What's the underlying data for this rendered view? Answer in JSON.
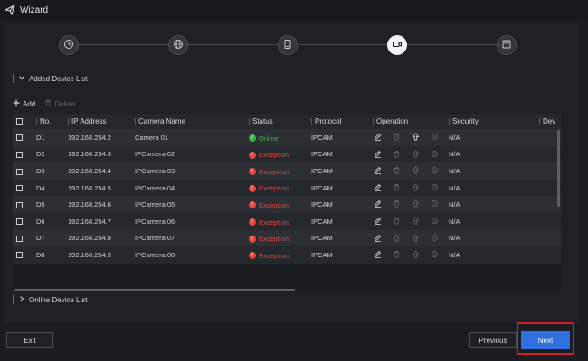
{
  "window": {
    "title": "Wizard"
  },
  "stepper": {
    "steps": [
      {
        "icon": "clock-icon",
        "active": false
      },
      {
        "icon": "globe-icon",
        "active": false
      },
      {
        "icon": "storage-icon",
        "active": false
      },
      {
        "icon": "camera-icon",
        "active": true
      },
      {
        "icon": "save-icon",
        "active": false
      }
    ]
  },
  "added_section": {
    "label": "Added Device List",
    "expanded": true
  },
  "toolbar": {
    "add_label": "Add",
    "delete_label": "Delete"
  },
  "table": {
    "columns": {
      "no": "No.",
      "ip": "IP Address",
      "name": "Camera Name",
      "status": "Status",
      "protocol": "Protocol",
      "operation": "Operation",
      "security": "Security",
      "device": "Dev"
    },
    "rows": [
      {
        "no": "D1",
        "ip": "192.168.254.2",
        "name": "Camera 01",
        "status": "Online",
        "protocol": "IPCAM",
        "security": "N/A"
      },
      {
        "no": "D2",
        "ip": "192.168.254.3",
        "name": "IPCamera 02",
        "status": "Exception",
        "protocol": "IPCAM",
        "security": "N/A"
      },
      {
        "no": "D3",
        "ip": "192.168.254.4",
        "name": "IPCamera 03",
        "status": "Exception",
        "protocol": "IPCAM",
        "security": "N/A"
      },
      {
        "no": "D4",
        "ip": "192.168.254.5",
        "name": "IPCamera 04",
        "status": "Exception",
        "protocol": "IPCAM",
        "security": "N/A"
      },
      {
        "no": "D5",
        "ip": "192.168.254.6",
        "name": "IPCamera 05",
        "status": "Exception",
        "protocol": "IPCAM",
        "security": "N/A"
      },
      {
        "no": "D6",
        "ip": "192.168.254.7",
        "name": "IPCamera 06",
        "status": "Exception",
        "protocol": "IPCAM",
        "security": "N/A"
      },
      {
        "no": "D7",
        "ip": "192.168.254.8",
        "name": "IPCamera 07",
        "status": "Exception",
        "protocol": "IPCAM",
        "security": "N/A"
      },
      {
        "no": "D8",
        "ip": "192.168.254.9",
        "name": "IPCamera 08",
        "status": "Exception",
        "protocol": "IPCAM",
        "security": "N/A"
      }
    ]
  },
  "online_section": {
    "label": "Online Device List",
    "expanded": false
  },
  "buttons": {
    "exit": "Exit",
    "previous": "Previous",
    "next": "Next"
  },
  "colors": {
    "accent": "#2f6fe0",
    "online": "#3bb54a",
    "exception": "#e5433b",
    "exception_text": "#e5433b",
    "highlight": "#d21f2a"
  }
}
